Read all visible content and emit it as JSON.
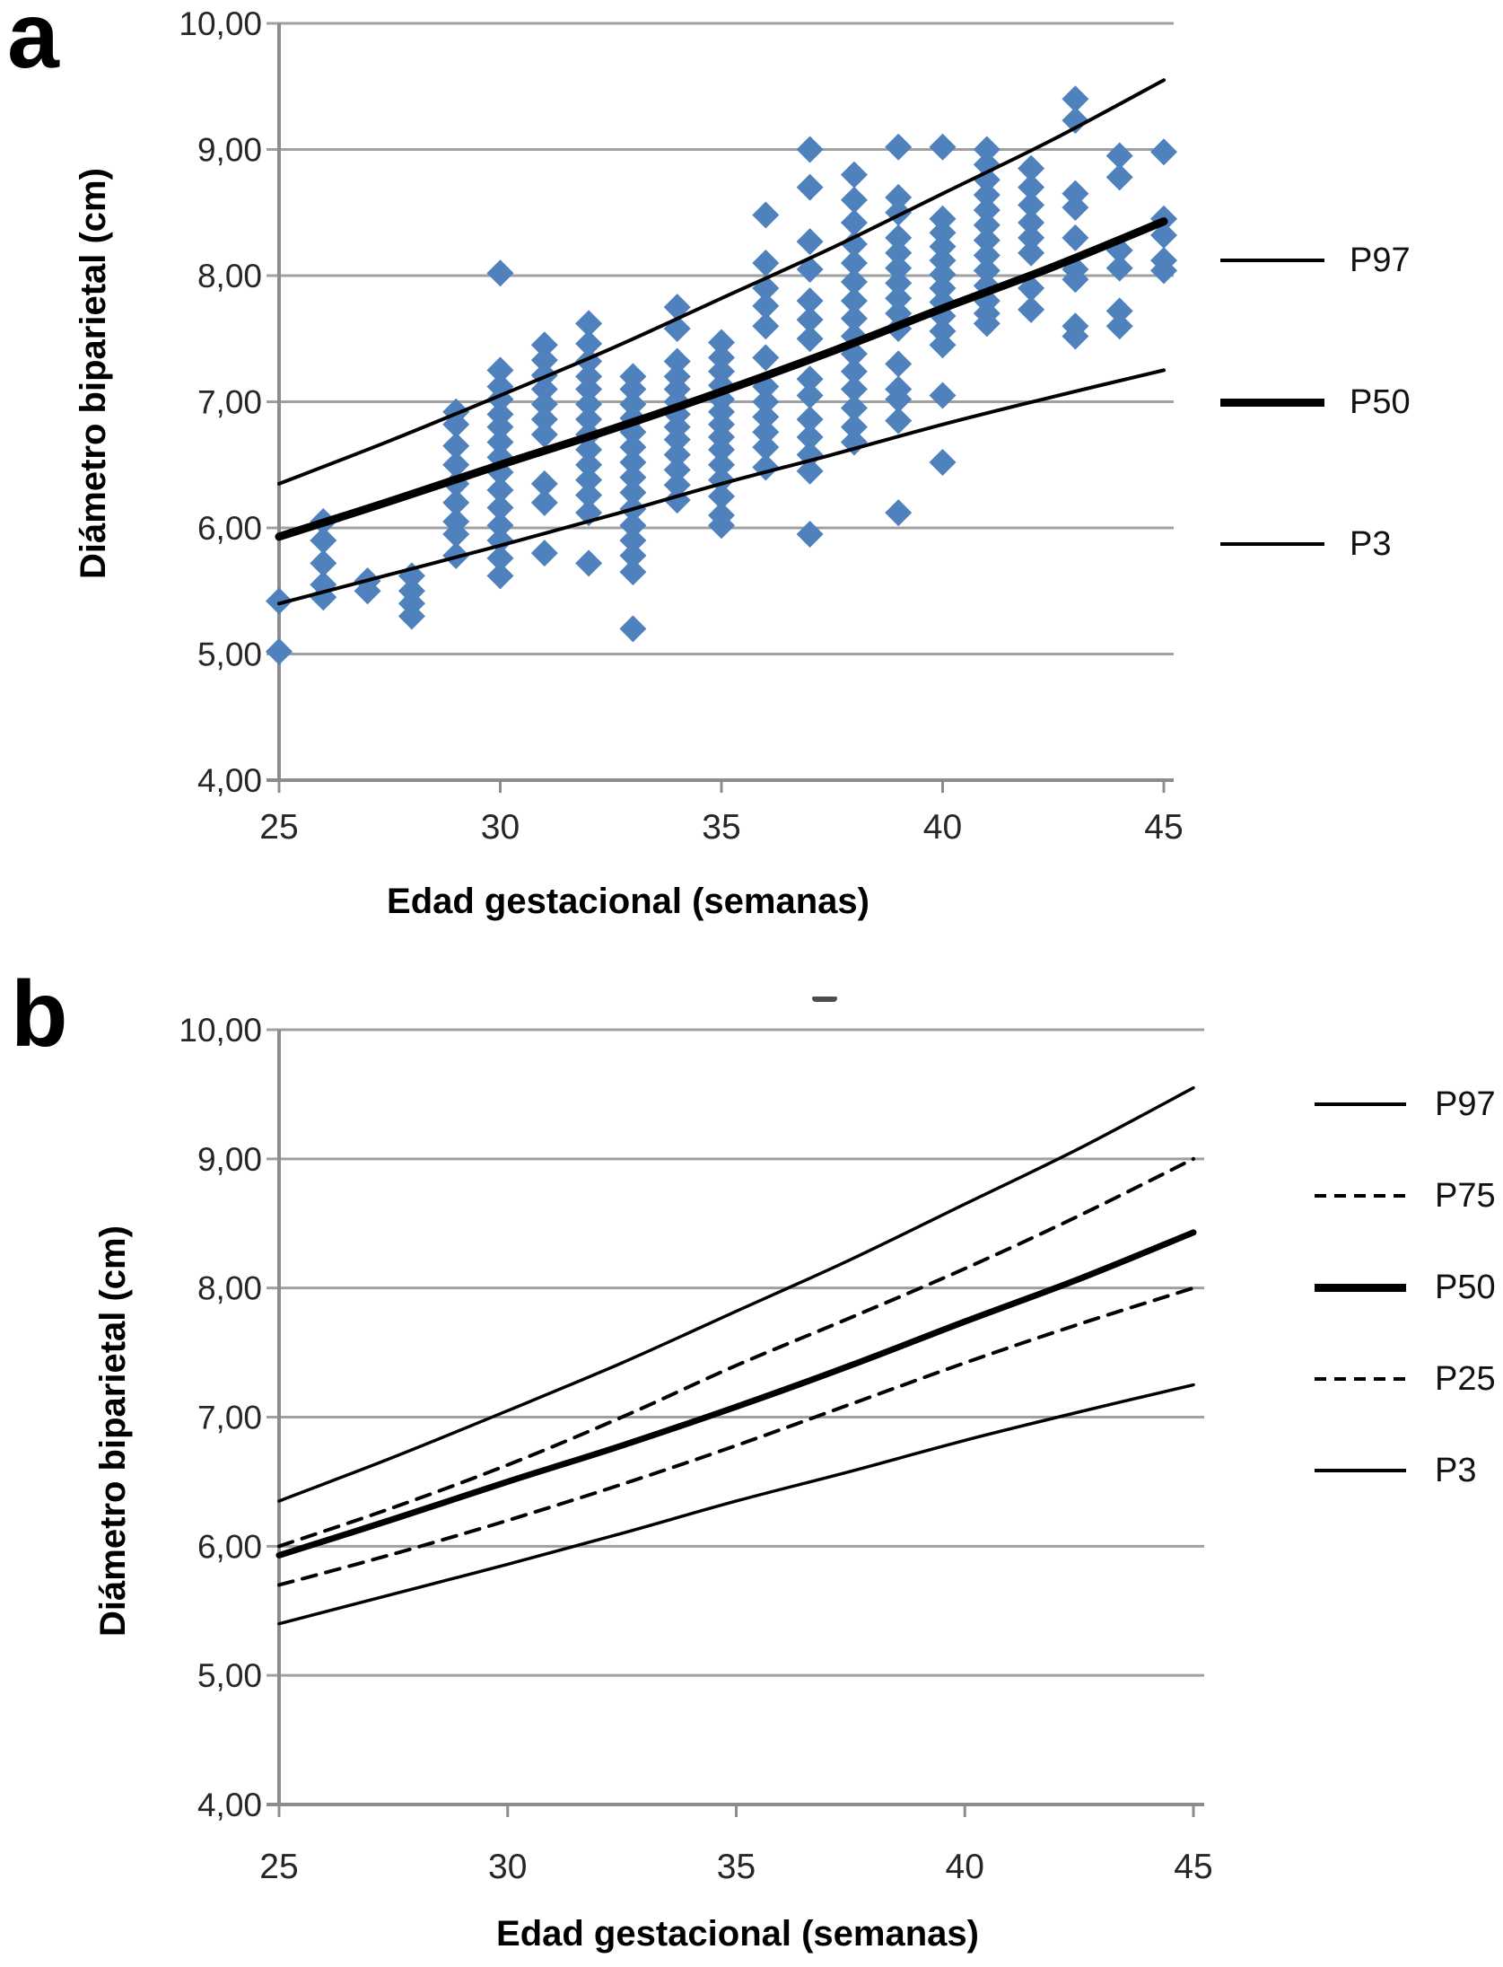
{
  "page": {
    "background": "#ffffff"
  },
  "panel_a": {
    "label": "a",
    "y_title": "Diámetro biparietal (cm)",
    "x_title": "Edad gestacional (semanas)",
    "legend": [
      {
        "label": "P97",
        "style": "thin-solid"
      },
      {
        "label": "P50",
        "style": "thick-solid"
      },
      {
        "label": "P3",
        "style": "thin-solid"
      }
    ]
  },
  "panel_b": {
    "label": "b",
    "y_title": "Diámetro biparietal (cm)",
    "x_title": "Edad gestacional (semanas)",
    "legend": [
      {
        "label": "P97",
        "style": "thin-solid"
      },
      {
        "label": "P75",
        "style": "dashed"
      },
      {
        "label": "P50",
        "style": "thick-solid"
      },
      {
        "label": "P25",
        "style": "dashed"
      },
      {
        "label": "P3",
        "style": "thin-solid"
      }
    ]
  },
  "colors": {
    "marker": "#4F81BD",
    "gridline": "#a0a0a0",
    "axis": "#8c8c8c",
    "curve": "#000000",
    "tick_text": "#262626"
  },
  "chart_data": [
    {
      "panel": "a",
      "type": "scatter",
      "title": "",
      "xlabel": "Edad gestacional (semanas)",
      "ylabel": "Diámetro biparietal (cm)",
      "xlim": [
        25,
        45
      ],
      "ylim": [
        4,
        10
      ],
      "grid": "horizontal",
      "legend_position": "right",
      "xticks": [
        25,
        30,
        35,
        40,
        45
      ],
      "xtick_labels": [
        "25",
        "30",
        "35",
        "40",
        "45"
      ],
      "yticks": [
        10,
        9,
        8,
        7,
        6,
        5,
        4
      ],
      "ytick_labels": [
        "10,00",
        "9,00",
        "8,00",
        "7,00",
        "6,00",
        "5,00",
        "4,00"
      ],
      "marker": {
        "shape": "diamond",
        "color": "#4F81BD",
        "half_size": 15
      },
      "scatter_by_week": {
        "25": [
          5.42,
          5.02
        ],
        "26": [
          6.05,
          5.9,
          5.72,
          5.55,
          5.45
        ],
        "27": [
          5.58,
          5.5
        ],
        "28": [
          5.62,
          5.5,
          5.4,
          5.3
        ],
        "29": [
          6.92,
          6.82,
          6.65,
          6.5,
          6.35,
          6.2,
          6.05,
          5.95,
          5.78
        ],
        "30": [
          8.02,
          7.25,
          7.12,
          7.02,
          6.9,
          6.8,
          6.68,
          6.56,
          6.44,
          6.3,
          6.16,
          6.02,
          5.9,
          5.76,
          5.62
        ],
        "31": [
          7.45,
          7.33,
          7.21,
          7.1,
          6.98,
          6.86,
          6.74,
          6.35,
          6.2,
          5.8
        ],
        "32": [
          7.62,
          7.46,
          7.32,
          7.2,
          7.1,
          6.98,
          6.86,
          6.74,
          6.62,
          6.5,
          6.38,
          6.26,
          6.12,
          5.72
        ],
        "33": [
          7.2,
          7.1,
          6.98,
          6.87,
          6.76,
          6.64,
          6.52,
          6.4,
          6.28,
          6.15,
          6.02,
          5.9,
          5.78,
          5.65,
          5.2
        ],
        "34": [
          7.75,
          7.58,
          7.32,
          7.2,
          7.1,
          7.0,
          6.9,
          6.8,
          6.7,
          6.58,
          6.46,
          6.34,
          6.22
        ],
        "35": [
          7.47,
          7.35,
          7.24,
          7.13,
          7.02,
          6.92,
          6.82,
          6.72,
          6.62,
          6.5,
          6.38,
          6.25,
          6.1,
          6.02
        ],
        "36": [
          8.48,
          8.1,
          7.9,
          7.76,
          7.6,
          7.35,
          7.12,
          7.0,
          6.88,
          6.76,
          6.64,
          6.48
        ],
        "37": [
          9.0,
          8.7,
          8.27,
          8.05,
          7.8,
          7.65,
          7.5,
          7.18,
          7.05,
          6.86,
          6.72,
          6.58,
          6.45,
          5.95
        ],
        "38": [
          8.8,
          8.6,
          8.42,
          8.25,
          8.1,
          7.95,
          7.8,
          7.66,
          7.52,
          7.38,
          7.24,
          7.1,
          6.95,
          6.8,
          6.68
        ],
        "39": [
          9.02,
          8.62,
          8.5,
          8.3,
          8.18,
          8.06,
          7.94,
          7.82,
          7.7,
          7.58,
          7.3,
          7.1,
          7.02,
          6.85,
          6.12
        ],
        "40": [
          9.02,
          8.45,
          8.34,
          8.23,
          8.12,
          8.01,
          7.9,
          7.79,
          7.68,
          7.56,
          7.45,
          7.05,
          6.52
        ],
        "41": [
          9.0,
          8.88,
          8.76,
          8.64,
          8.52,
          8.4,
          8.28,
          8.16,
          8.04,
          7.92,
          7.8,
          7.7,
          7.62
        ],
        "42": [
          8.85,
          8.7,
          8.56,
          8.42,
          8.3,
          8.18,
          7.9,
          7.73
        ],
        "43": [
          9.4,
          9.23,
          8.65,
          8.54,
          8.3,
          8.05,
          7.97,
          7.6,
          7.52
        ],
        "44": [
          8.95,
          8.78,
          8.2,
          8.06,
          7.72,
          7.6
        ],
        "45": [
          8.98,
          8.45,
          8.32,
          8.12,
          8.04
        ]
      },
      "series": [
        {
          "name": "P97",
          "line": "solid",
          "width": 4,
          "x": [
            25,
            27.5,
            30,
            32.5,
            35,
            37.5,
            40,
            42.5,
            45
          ],
          "y": [
            6.35,
            6.69,
            7.05,
            7.42,
            7.82,
            8.22,
            8.65,
            9.08,
            9.55
          ]
        },
        {
          "name": "P50",
          "line": "solid",
          "width": 9,
          "x": [
            25,
            27.5,
            30,
            32.5,
            35,
            37.5,
            40,
            42.5,
            45
          ],
          "y": [
            5.93,
            6.21,
            6.5,
            6.78,
            7.08,
            7.4,
            7.74,
            8.07,
            8.43
          ]
        },
        {
          "name": "P3",
          "line": "solid",
          "width": 4,
          "x": [
            25,
            27.5,
            30,
            32.5,
            35,
            37.5,
            40,
            42.5,
            45
          ],
          "y": [
            5.4,
            5.63,
            5.86,
            6.1,
            6.35,
            6.58,
            6.82,
            7.04,
            7.25
          ]
        }
      ],
      "legend_entries": [
        "P97",
        "P50",
        "P3"
      ]
    },
    {
      "panel": "b",
      "type": "line",
      "title": "",
      "xlabel": "Edad gestacional (semanas)",
      "ylabel": "Diámetro biparietal (cm)",
      "xlim": [
        25,
        45
      ],
      "ylim": [
        4,
        10
      ],
      "grid": "horizontal",
      "legend_position": "right",
      "xticks": [
        25,
        30,
        35,
        40,
        45
      ],
      "xtick_labels": [
        "25",
        "30",
        "35",
        "40",
        "45"
      ],
      "yticks": [
        10,
        9,
        8,
        7,
        6,
        5,
        4
      ],
      "ytick_labels": [
        "10,00",
        "9,00",
        "8,00",
        "7,00",
        "6,00",
        "5,00",
        "4,00"
      ],
      "series": [
        {
          "name": "P97",
          "line": "solid",
          "width": 3.5,
          "x": [
            25,
            27.5,
            30,
            32.5,
            35,
            37.5,
            40,
            42.5,
            45
          ],
          "y": [
            6.35,
            6.69,
            7.05,
            7.42,
            7.82,
            8.22,
            8.65,
            9.08,
            9.55
          ]
        },
        {
          "name": "P75",
          "line": "dashed",
          "width": 4,
          "x": [
            25,
            27.5,
            30,
            32.5,
            35,
            37.5,
            40,
            42.5,
            45
          ],
          "y": [
            6.0,
            6.3,
            6.63,
            7.0,
            7.4,
            7.77,
            8.15,
            8.56,
            9.0
          ]
        },
        {
          "name": "P50",
          "line": "solid",
          "width": 7,
          "x": [
            25,
            27.5,
            30,
            32.5,
            35,
            37.5,
            40,
            42.5,
            45
          ],
          "y": [
            5.93,
            6.21,
            6.5,
            6.78,
            7.08,
            7.4,
            7.74,
            8.07,
            8.43
          ]
        },
        {
          "name": "P25",
          "line": "dashed",
          "width": 4,
          "x": [
            25,
            27.5,
            30,
            32.5,
            35,
            37.5,
            40,
            42.5,
            45
          ],
          "y": [
            5.7,
            5.94,
            6.2,
            6.48,
            6.78,
            7.1,
            7.42,
            7.72,
            8.0
          ]
        },
        {
          "name": "P3",
          "line": "solid",
          "width": 3.5,
          "x": [
            25,
            27.5,
            30,
            32.5,
            35,
            37.5,
            40,
            42.5,
            45
          ],
          "y": [
            5.4,
            5.63,
            5.86,
            6.1,
            6.35,
            6.58,
            6.82,
            7.04,
            7.25
          ]
        }
      ],
      "legend_entries": [
        "P97",
        "P75",
        "P50",
        "P25",
        "P3"
      ]
    }
  ]
}
